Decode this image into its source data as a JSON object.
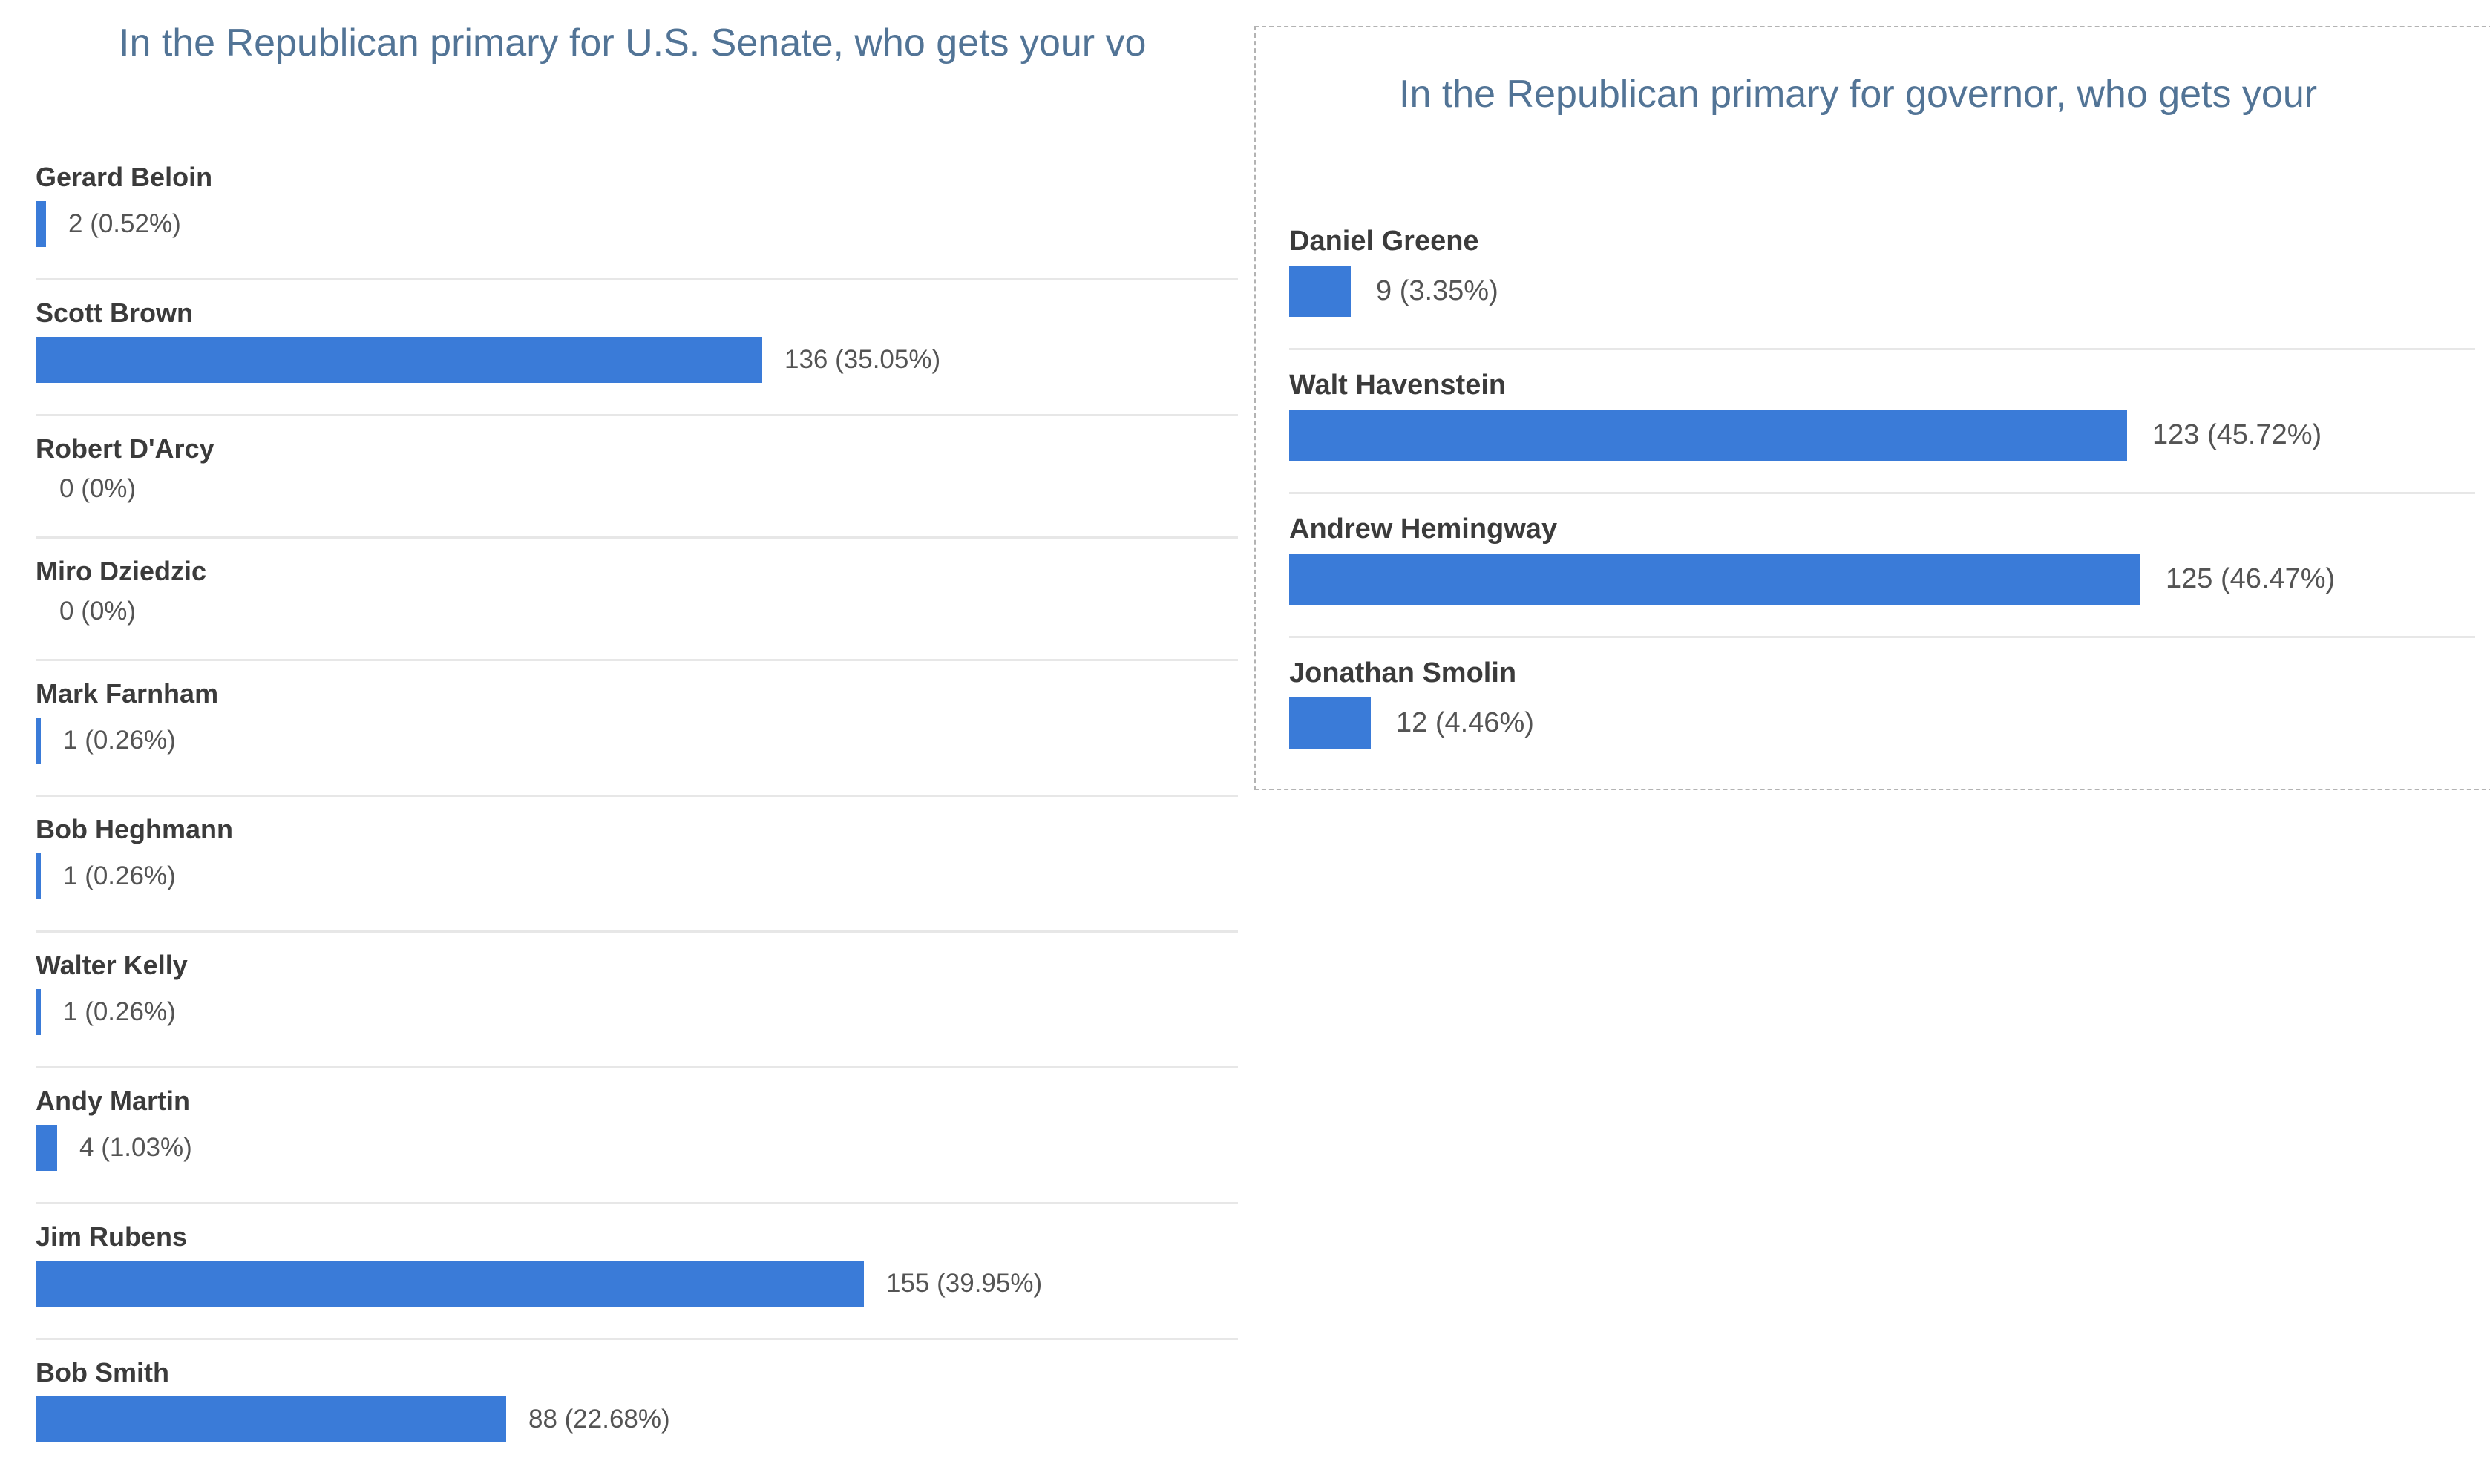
{
  "colors": {
    "bar": "#3a7bd8",
    "title": "#527496",
    "candidate_name": "#3b3b3b",
    "value_text": "#545454",
    "row_divider": "#e7e7e7",
    "selection_border": "#b3b3b3"
  },
  "chart_data": [
    {
      "type": "bar",
      "orientation": "horizontal",
      "title": "In the Republican primary for U.S. Senate, who gets your vo",
      "categories": [
        "Gerard Beloin",
        "Scott Brown",
        "Robert D'Arcy",
        "Miro Dziedzic",
        "Mark Farnham",
        "Bob Heghmann",
        "Walter Kelly",
        "Andy Martin",
        "Jim Rubens",
        "Bob Smith"
      ],
      "values": [
        2,
        136,
        0,
        0,
        1,
        1,
        1,
        4,
        155,
        88
      ],
      "percents": [
        0.52,
        35.05,
        0,
        0,
        0.26,
        0.26,
        0.26,
        1.03,
        39.95,
        22.68
      ],
      "labels": [
        "2 (0.52%)",
        "136 (35.05%)",
        "0 (0%)",
        "0 (0%)",
        "1 (0.26%)",
        "1 (0.26%)",
        "1 (0.26%)",
        "4 (1.03%)",
        "155 (39.95%)",
        "88 (22.68%)"
      ],
      "legend": "none",
      "grid": false
    },
    {
      "type": "bar",
      "orientation": "horizontal",
      "title": "In the Republican primary for governor, who gets your",
      "categories": [
        "Daniel Greene",
        "Walt Havenstein",
        "Andrew Hemingway",
        "Jonathan Smolin"
      ],
      "values": [
        9,
        123,
        125,
        12
      ],
      "percents": [
        3.35,
        45.72,
        46.47,
        4.46
      ],
      "labels": [
        "9 (3.35%)",
        "123 (45.72%)",
        "125 (46.47%)",
        "12 (4.46%)"
      ],
      "legend": "none",
      "grid": false
    }
  ]
}
